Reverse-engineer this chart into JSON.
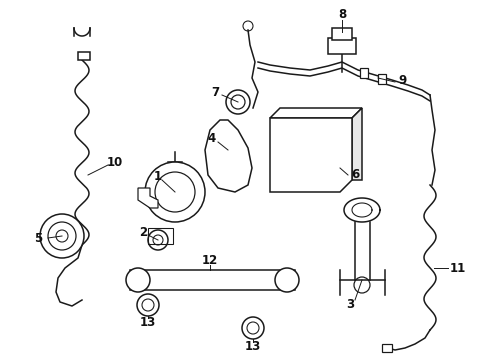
{
  "bg_color": "#ffffff",
  "line_color": "#1a1a1a",
  "label_color": "#111111",
  "figsize": [
    4.9,
    3.6
  ],
  "dpi": 100,
  "xlim": [
    0,
    490
  ],
  "ylim": [
    0,
    360
  ]
}
